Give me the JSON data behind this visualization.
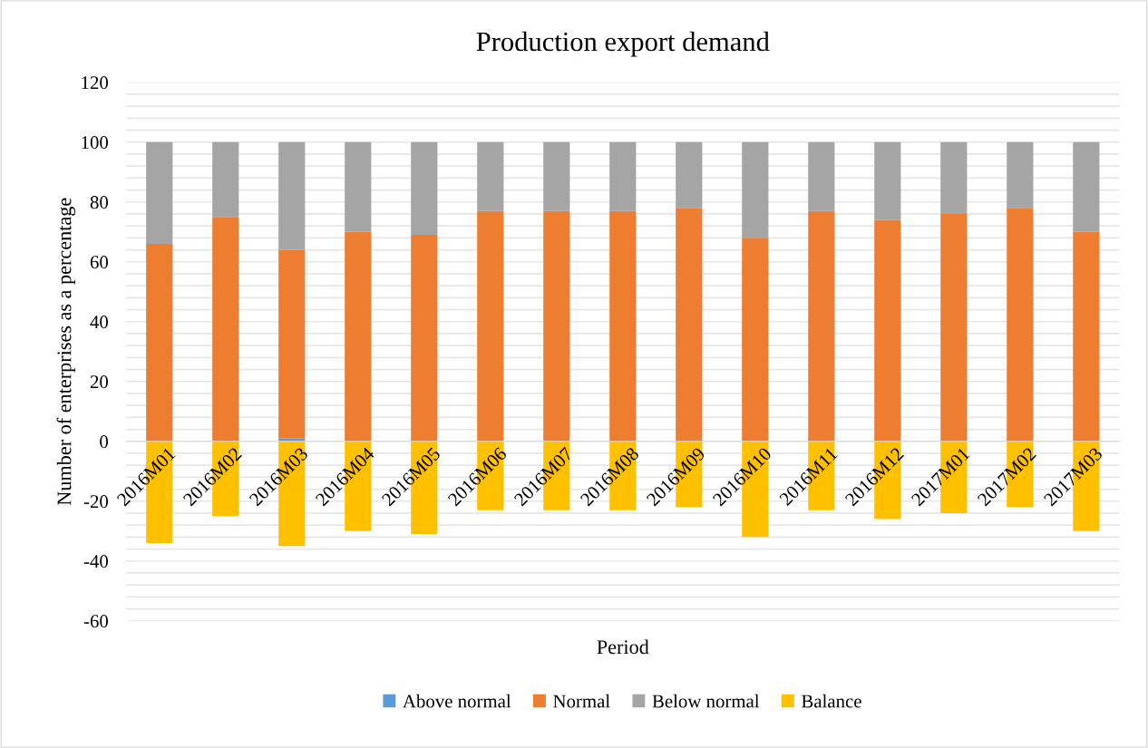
{
  "chart_data": {
    "type": "bar",
    "title": "Production export demand",
    "xlabel": "Period",
    "ylabel": "Number of enterprises as a percentage",
    "stacked": true,
    "categories": [
      "2016M01",
      "2016M02",
      "2016M03",
      "2016M04",
      "2016M05",
      "2016M06",
      "2016M07",
      "2016M08",
      "2016M09",
      "2016M10",
      "2016M11",
      "2016M12",
      "2017M01",
      "2017M02",
      "2017M03"
    ],
    "series": [
      {
        "name": "Above normal",
        "color": "#5b9bd5",
        "values": [
          0,
          0,
          1,
          0,
          0,
          0,
          0,
          0,
          0,
          0,
          0,
          0,
          0,
          0,
          0
        ]
      },
      {
        "name": "Normal",
        "color": "#ed7d31",
        "values": [
          66,
          75,
          63,
          70,
          69,
          77,
          77,
          77,
          78,
          68,
          77,
          74,
          76,
          78,
          70
        ]
      },
      {
        "name": "Below normal",
        "color": "#a5a5a5",
        "values": [
          34,
          25,
          36,
          30,
          31,
          23,
          23,
          23,
          22,
          32,
          23,
          26,
          24,
          22,
          30
        ]
      },
      {
        "name": "Balance",
        "color": "#ffc000",
        "values": [
          -34,
          -25,
          -35,
          -30,
          -31,
          -23,
          -23,
          -23,
          -22,
          -32,
          -23,
          -26,
          -24,
          -22,
          -30
        ]
      }
    ],
    "ylim": [
      -60,
      120
    ],
    "yticks": [
      -60,
      {
        "value": -56,
        "label": null
      },
      {
        "value": -52,
        "label": null
      },
      {
        "value": -48,
        "label": null
      },
      {
        "value": -44,
        "label": null
      },
      -40,
      {
        "value": -36,
        "label": null
      },
      {
        "value": -32,
        "label": null
      },
      {
        "value": -28,
        "label": null
      },
      {
        "value": -24,
        "label": null
      },
      -20,
      {
        "value": -16,
        "label": null
      },
      {
        "value": -12,
        "label": null
      },
      {
        "value": -8,
        "label": null
      },
      {
        "value": -4,
        "label": null
      },
      0,
      {
        "value": 4,
        "label": null
      },
      {
        "value": 8,
        "label": null
      },
      {
        "value": 12,
        "label": null
      },
      {
        "value": 16,
        "label": null
      },
      20,
      {
        "value": 24,
        "label": null
      },
      {
        "value": 28,
        "label": null
      },
      {
        "value": 32,
        "label": null
      },
      {
        "value": 36,
        "label": null
      },
      40,
      {
        "value": 44,
        "label": null
      },
      {
        "value": 48,
        "label": null
      },
      {
        "value": 52,
        "label": null
      },
      {
        "value": 56,
        "label": null
      },
      60,
      {
        "value": 64,
        "label": null
      },
      {
        "value": 68,
        "label": null
      },
      {
        "value": 72,
        "label": null
      },
      {
        "value": 76,
        "label": null
      },
      80,
      {
        "value": 84,
        "label": null
      },
      {
        "value": 88,
        "label": null
      },
      {
        "value": 92,
        "label": null
      },
      {
        "value": 96,
        "label": null
      },
      100,
      {
        "value": 104,
        "label": null
      },
      {
        "value": 108,
        "label": null
      },
      {
        "value": 112,
        "label": null
      },
      {
        "value": 116,
        "label": null
      },
      120
    ],
    "grid": "y",
    "legend": "bottom"
  }
}
